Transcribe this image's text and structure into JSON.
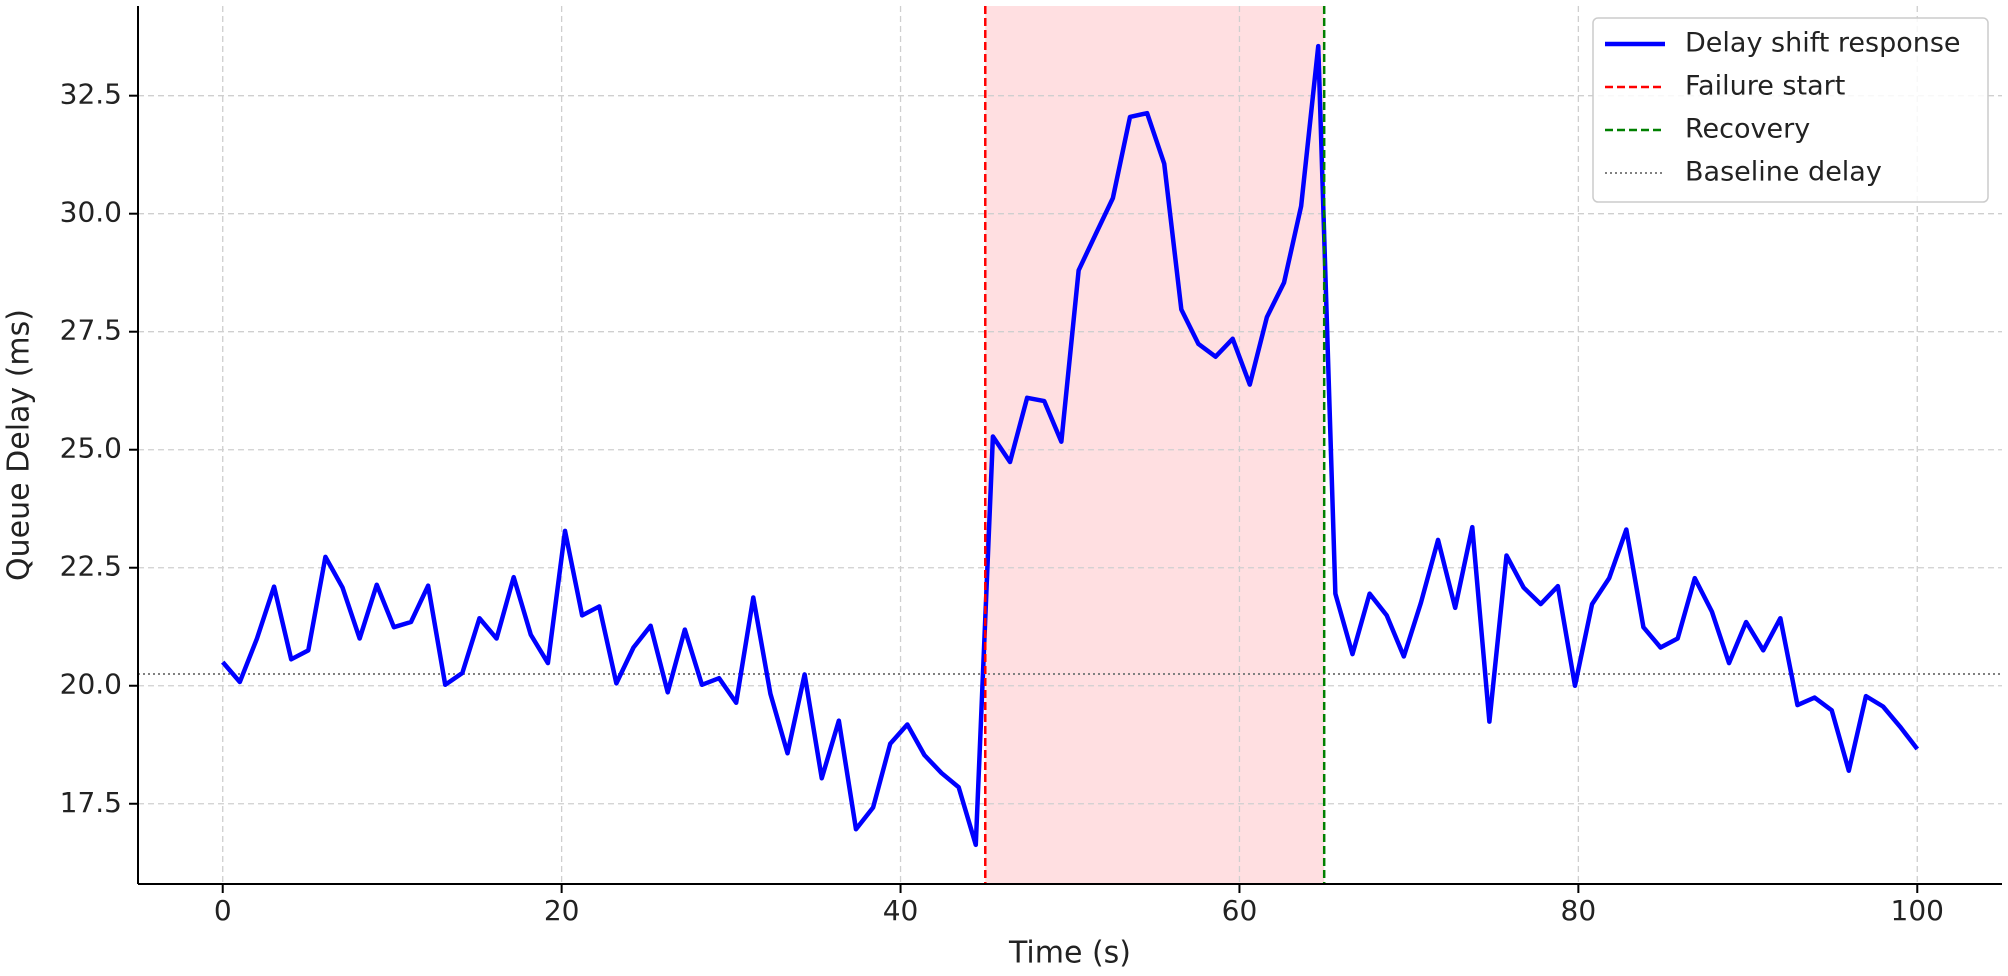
{
  "chart_data": {
    "type": "line",
    "x_label": "Time (s)",
    "y_label": "Queue Delay (ms)",
    "x": [
      0,
      1.01,
      2.02,
      3.03,
      4.04,
      5.05,
      6.06,
      7.07,
      8.08,
      9.09,
      10.1,
      11.11,
      12.12,
      13.13,
      14.14,
      15.15,
      16.16,
      17.17,
      18.18,
      19.19,
      20.2,
      21.21,
      22.22,
      23.23,
      24.24,
      25.25,
      26.26,
      27.27,
      28.28,
      29.29,
      30.3,
      31.31,
      32.32,
      33.33,
      34.34,
      35.35,
      36.36,
      37.37,
      38.38,
      39.39,
      40.4,
      41.41,
      42.42,
      43.43,
      44.44,
      45.45,
      46.46,
      47.47,
      48.48,
      49.49,
      50.51,
      51.52,
      52.53,
      53.54,
      54.55,
      55.56,
      56.57,
      57.58,
      58.59,
      59.6,
      60.61,
      61.62,
      62.63,
      63.64,
      64.65,
      65.66,
      66.67,
      67.68,
      68.69,
      69.7,
      70.71,
      71.72,
      72.73,
      73.74,
      74.75,
      75.76,
      76.77,
      77.78,
      78.79,
      79.8,
      80.81,
      81.82,
      82.83,
      83.84,
      84.85,
      85.86,
      86.87,
      87.88,
      88.89,
      89.9,
      90.91,
      91.92,
      92.93,
      93.94,
      94.95,
      95.96,
      96.97,
      97.98,
      98.99,
      100
    ],
    "series": [
      {
        "name": "Delay shift response",
        "color": "#0000ff",
        "values": [
          20.5,
          20.08,
          21.0,
          22.1,
          20.56,
          20.75,
          22.73,
          22.08,
          21.0,
          22.14,
          21.24,
          21.35,
          22.12,
          20.02,
          20.27,
          21.43,
          21.0,
          22.3,
          21.08,
          20.48,
          23.28,
          21.49,
          21.68,
          20.05,
          20.81,
          21.27,
          19.86,
          21.19,
          20.02,
          20.16,
          19.64,
          21.87,
          19.83,
          18.57,
          20.24,
          18.04,
          19.26,
          16.96,
          17.42,
          18.77,
          19.18,
          18.53,
          18.15,
          17.85,
          16.63,
          25.28,
          24.74,
          26.1,
          26.03,
          25.17,
          28.8,
          29.57,
          30.33,
          32.05,
          32.13,
          31.06,
          27.97,
          27.24,
          26.97,
          27.35,
          26.38,
          27.81,
          28.54,
          30.16,
          33.55,
          21.95,
          20.67,
          21.95,
          21.49,
          20.62,
          21.76,
          23.09,
          21.65,
          23.36,
          19.24,
          22.76,
          22.08,
          21.73,
          22.11,
          20.0,
          21.73,
          22.28,
          23.31,
          21.24,
          20.81,
          21.0,
          22.28,
          21.57,
          20.48,
          21.35,
          20.75,
          21.43,
          19.59,
          19.75,
          19.48,
          18.2,
          19.78,
          19.56,
          19.13,
          18.66
        ]
      }
    ],
    "vlines": [
      {
        "name": "Failure start",
        "value": 45,
        "color": "#ff0000"
      },
      {
        "name": "Recovery",
        "value": 65,
        "color": "#008000"
      }
    ],
    "hline": {
      "name": "Baseline delay",
      "value": 20.25,
      "color": "#808080"
    },
    "span": {
      "from": 45,
      "to": 65,
      "color": "#ffdfe1"
    },
    "xlim": [
      -5,
      105
    ],
    "ylim": [
      15.8,
      34.4
    ],
    "xticks": [
      0,
      20,
      40,
      60,
      80,
      100
    ],
    "yticks": [
      17.5,
      {
        "value": 20,
        "label": "20.0"
      },
      22.5,
      {
        "value": 25,
        "label": "25.0"
      },
      27.5,
      {
        "value": 30,
        "label": "30.0"
      },
      32.5
    ],
    "grid": true,
    "legend": "upper right"
  }
}
